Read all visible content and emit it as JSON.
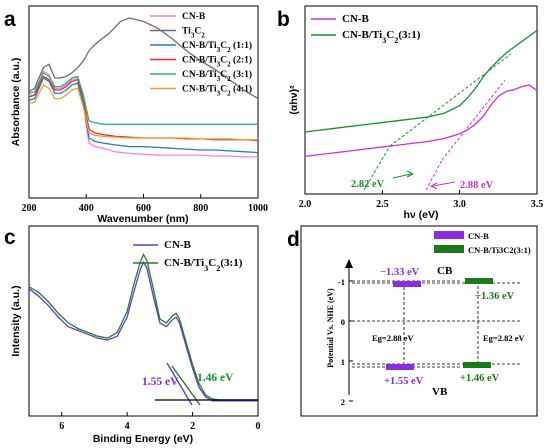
{
  "chart_data": [
    {
      "panel": "a",
      "type": "line",
      "xlabel": "Wavenumber (nm)",
      "ylabel": "Absorbance (a.u.)",
      "xlim": [
        200,
        1000
      ],
      "xticks": [
        200,
        400,
        600,
        800,
        1000
      ],
      "legend_position": "top-left",
      "series": [
        {
          "name": "CN-B",
          "color": "#ee82ee",
          "x": [
            200,
            220,
            250,
            270,
            290,
            310,
            330,
            350,
            370,
            390,
            400,
            410,
            430,
            460,
            500,
            550,
            600,
            650,
            700,
            750,
            800,
            850,
            900,
            950,
            1000
          ],
          "y": [
            0.6,
            0.6,
            0.74,
            0.72,
            0.64,
            0.64,
            0.66,
            0.69,
            0.7,
            0.58,
            0.42,
            0.32,
            0.3,
            0.29,
            0.27,
            0.26,
            0.255,
            0.25,
            0.25,
            0.25,
            0.25,
            0.245,
            0.245,
            0.24,
            0.24
          ]
        },
        {
          "name": "Ti3C2",
          "color": "#6d6d6d",
          "x": [
            200,
            220,
            250,
            270,
            290,
            310,
            330,
            350,
            370,
            390,
            410,
            440,
            480,
            520,
            550,
            600,
            650,
            700,
            750,
            800,
            850,
            900,
            950,
            1000
          ],
          "y": [
            0.62,
            0.64,
            0.76,
            0.78,
            0.7,
            0.7,
            0.71,
            0.73,
            0.76,
            0.8,
            0.86,
            0.91,
            0.96,
            1.03,
            1.05,
            1.03,
            0.99,
            0.93,
            0.86,
            0.8,
            0.75,
            0.69,
            0.63,
            0.58
          ]
        },
        {
          "name": "CN-B/Ti3C2 (1:1)",
          "color": "#1e7fc8",
          "x": [
            200,
            220,
            250,
            270,
            290,
            310,
            330,
            350,
            370,
            390,
            400,
            410,
            430,
            460,
            500,
            550,
            600,
            650,
            700,
            750,
            800,
            850,
            900,
            950,
            1000
          ],
          "y": [
            0.57,
            0.58,
            0.7,
            0.68,
            0.61,
            0.61,
            0.63,
            0.66,
            0.67,
            0.55,
            0.44,
            0.35,
            0.33,
            0.32,
            0.31,
            0.3,
            0.3,
            0.295,
            0.29,
            0.285,
            0.28,
            0.28,
            0.275,
            0.27,
            0.265
          ]
        },
        {
          "name": "CN-B/Ti3C2 (2:1)",
          "color": "#e0302e",
          "x": [
            200,
            220,
            250,
            270,
            290,
            310,
            330,
            350,
            370,
            390,
            400,
            410,
            430,
            460,
            500,
            550,
            600,
            650,
            700,
            750,
            800,
            850,
            900,
            950,
            1000
          ],
          "y": [
            0.59,
            0.6,
            0.71,
            0.69,
            0.63,
            0.63,
            0.65,
            0.68,
            0.69,
            0.58,
            0.48,
            0.4,
            0.38,
            0.37,
            0.36,
            0.355,
            0.35,
            0.35,
            0.35,
            0.345,
            0.345,
            0.34,
            0.34,
            0.34,
            0.335
          ]
        },
        {
          "name": "CN-B/Ti3C2 (3:1)",
          "color": "#2bb673",
          "x": [
            200,
            220,
            250,
            270,
            290,
            310,
            330,
            350,
            370,
            390,
            400,
            410,
            430,
            460,
            500,
            550,
            600,
            650,
            700,
            750,
            800,
            850,
            900,
            950,
            1000
          ],
          "y": [
            0.61,
            0.62,
            0.73,
            0.71,
            0.65,
            0.65,
            0.67,
            0.7,
            0.71,
            0.6,
            0.52,
            0.45,
            0.44,
            0.43,
            0.43,
            0.43,
            0.43,
            0.43,
            0.43,
            0.43,
            0.43,
            0.43,
            0.43,
            0.43,
            0.43
          ]
        },
        {
          "name": "CN-B/Ti3C2 (4:1)",
          "color": "#f0a030",
          "x": [
            200,
            220,
            250,
            270,
            290,
            310,
            330,
            350,
            370,
            390,
            400,
            410,
            430,
            460,
            500,
            550,
            600,
            650,
            700,
            750,
            800,
            850,
            900,
            950,
            1000
          ],
          "y": [
            0.55,
            0.56,
            0.66,
            0.64,
            0.58,
            0.58,
            0.6,
            0.63,
            0.64,
            0.53,
            0.45,
            0.38,
            0.365,
            0.36,
            0.355,
            0.35,
            0.35,
            0.35,
            0.35,
            0.35,
            0.345,
            0.345,
            0.345,
            0.34,
            0.34
          ]
        }
      ]
    },
    {
      "panel": "b",
      "type": "line",
      "xlabel": "hν (eV)",
      "ylabel": "(αhν)²",
      "xlim": [
        2.0,
        3.5
      ],
      "xticks": [
        2.0,
        2.5,
        3.0,
        3.5
      ],
      "legend_position": "top-left",
      "series": [
        {
          "name": "CN-B",
          "color": "#cc33cc",
          "x": [
            2.0,
            2.2,
            2.4,
            2.6,
            2.8,
            2.9,
            3.0,
            3.05,
            3.1,
            3.15,
            3.2,
            3.25,
            3.3,
            3.35,
            3.4,
            3.45,
            3.5
          ],
          "y": [
            0.05,
            0.07,
            0.09,
            0.11,
            0.13,
            0.145,
            0.17,
            0.19,
            0.22,
            0.26,
            0.32,
            0.37,
            0.395,
            0.405,
            0.42,
            0.43,
            0.4
          ]
        },
        {
          "name": "CN-B/Ti3C2(3:1)",
          "color": "#1a8f30",
          "x": [
            2.0,
            2.2,
            2.4,
            2.6,
            2.8,
            2.9,
            3.0,
            3.05,
            3.1,
            3.15,
            3.2,
            3.25,
            3.3,
            3.35,
            3.4,
            3.45,
            3.5
          ],
          "y": [
            0.18,
            0.2,
            0.22,
            0.24,
            0.26,
            0.28,
            0.32,
            0.36,
            0.41,
            0.47,
            0.52,
            0.56,
            0.6,
            0.63,
            0.66,
            0.69,
            0.72
          ]
        }
      ],
      "annotations": [
        {
          "text": "2.82 eV",
          "color": "#1a8f30"
        },
        {
          "text": "2.88 eV",
          "color": "#cc33cc"
        }
      ]
    },
    {
      "panel": "c",
      "type": "line",
      "xlabel": "Binding Energy (eV)",
      "ylabel": "Intensity (a.u.)",
      "xlim": [
        7,
        0
      ],
      "xticks": [
        6,
        4,
        2,
        0
      ],
      "legend_position": "top-right",
      "series": [
        {
          "name": "CN-B",
          "color": "#5b3fcf",
          "x": [
            7.0,
            6.7,
            6.4,
            6.1,
            5.8,
            5.5,
            5.2,
            4.9,
            4.6,
            4.3,
            4.0,
            3.8,
            3.6,
            3.5,
            3.4,
            3.2,
            3.0,
            2.8,
            2.6,
            2.5,
            2.4,
            2.2,
            2.0,
            1.8,
            1.6,
            1.4,
            1.2,
            1.0,
            0.5,
            0.0
          ],
          "y": [
            0.62,
            0.58,
            0.53,
            0.47,
            0.42,
            0.4,
            0.38,
            0.36,
            0.35,
            0.37,
            0.47,
            0.6,
            0.72,
            0.76,
            0.73,
            0.58,
            0.44,
            0.42,
            0.46,
            0.47,
            0.44,
            0.32,
            0.2,
            0.1,
            0.05,
            0.03,
            0.03,
            0.03,
            0.03,
            0.03
          ]
        },
        {
          "name": "CN-B/Ti3C2(3:1)",
          "color": "#2a7a2a",
          "x": [
            7.0,
            6.7,
            6.4,
            6.1,
            5.8,
            5.5,
            5.2,
            4.9,
            4.6,
            4.3,
            4.0,
            3.8,
            3.6,
            3.5,
            3.4,
            3.2,
            3.0,
            2.8,
            2.6,
            2.5,
            2.4,
            2.2,
            2.0,
            1.8,
            1.6,
            1.4,
            1.2,
            1.0,
            0.5,
            0.0
          ],
          "y": [
            0.63,
            0.6,
            0.55,
            0.49,
            0.44,
            0.41,
            0.39,
            0.37,
            0.36,
            0.39,
            0.5,
            0.64,
            0.76,
            0.8,
            0.77,
            0.62,
            0.46,
            0.44,
            0.48,
            0.49,
            0.46,
            0.34,
            0.22,
            0.12,
            0.06,
            0.04,
            0.035,
            0.035,
            0.035,
            0.035
          ]
        }
      ],
      "annotations": [
        {
          "text": "1.55 eV",
          "color": "#7b2fd8"
        },
        {
          "text": "1.46 eV",
          "color": "#1a8f30"
        }
      ]
    },
    {
      "panel": "d",
      "type": "diagram",
      "ylabel": "Potential Vs. NHE (eV)",
      "yticks": [
        -1,
        0,
        1,
        2
      ],
      "legend": [
        "CN-B",
        "CN-B/Ti3C2(3:1)"
      ],
      "labels": {
        "cb": "CB",
        "vb": "VB"
      },
      "bands": [
        {
          "name": "CN-B",
          "color": "#8b2be2",
          "cb": -1.33,
          "vb": 1.55,
          "cb_label": "−1.33 eV",
          "vb_label": "+1.55 eV",
          "eg_label": "Eg=2.88 eV"
        },
        {
          "name": "CN-B/Ti3C2(3:1)",
          "color": "#1a7a1a",
          "cb": -1.36,
          "vb": 1.46,
          "cb_label": "−1.36 eV",
          "vb_label": "+1.46 eV",
          "eg_label": "Eg=2.82 eV"
        }
      ]
    }
  ]
}
